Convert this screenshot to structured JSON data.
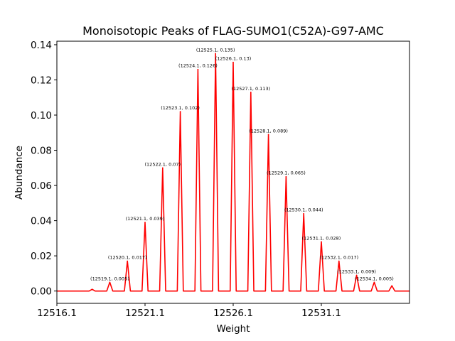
{
  "chart_data": {
    "type": "line",
    "title": "Monoisotopic Peaks of FLAG-SUMO1(C52A)-G97-AMC",
    "xlabel": "Weight",
    "ylabel": "Abundance",
    "xlim": [
      12516.1,
      12536.1
    ],
    "ylim": [
      -0.007,
      0.142
    ],
    "x_ticks": [
      12516.1,
      12521.1,
      12526.1,
      12531.1
    ],
    "x_tick_labels": [
      "12516.1",
      "12521.1",
      "12526.1",
      "12531.1"
    ],
    "y_ticks": [
      0.0,
      0.02,
      0.04,
      0.06,
      0.08,
      0.1,
      0.12,
      0.14
    ],
    "y_tick_labels": [
      "0.00",
      "0.02",
      "0.04",
      "0.06",
      "0.08",
      "0.10",
      "0.12",
      "0.14"
    ],
    "grid": false,
    "line_color": "#ff0000",
    "series": [
      {
        "x": [
          12518.1,
          12519.1,
          12520.1,
          12521.1,
          12522.1,
          12523.1,
          12524.1,
          12525.1,
          12526.1,
          12527.1,
          12528.1,
          12529.1,
          12530.1,
          12531.1,
          12532.1,
          12533.1,
          12534.1,
          12535.1
        ],
        "values": [
          0.001,
          0.005,
          0.017,
          0.039,
          0.07,
          0.102,
          0.126,
          0.135,
          0.13,
          0.113,
          0.089,
          0.065,
          0.044,
          0.028,
          0.017,
          0.009,
          0.005,
          0.003
        ]
      }
    ],
    "annotations": [
      "(12519.1, 0.005)",
      "(12520.1, 0.017)",
      "(12521.1, 0.039)",
      "(12522.1, 0.07)",
      "(12523.1, 0.102)",
      "(12524.1, 0.126)",
      "(12525.1, 0.135)",
      "(12526.1, 0.13)",
      "(12527.1, 0.113)",
      "(12528.1, 0.089)",
      "(12529.1, 0.065)",
      "(12530.1, 0.044)",
      "(12531.1, 0.028)",
      "(12532.1, 0.017)",
      "(12533.1, 0.009)",
      "(12534.1, 0.005)"
    ],
    "annotation_x": [
      12519.1,
      12520.1,
      12521.1,
      12522.1,
      12523.1,
      12524.1,
      12525.1,
      12526.1,
      12527.1,
      12528.1,
      12529.1,
      12530.1,
      12531.1,
      12532.1,
      12533.1,
      12534.1
    ],
    "annotation_y": [
      0.005,
      0.017,
      0.039,
      0.07,
      0.102,
      0.126,
      0.135,
      0.13,
      0.113,
      0.089,
      0.065,
      0.044,
      0.028,
      0.017,
      0.009,
      0.005
    ]
  }
}
